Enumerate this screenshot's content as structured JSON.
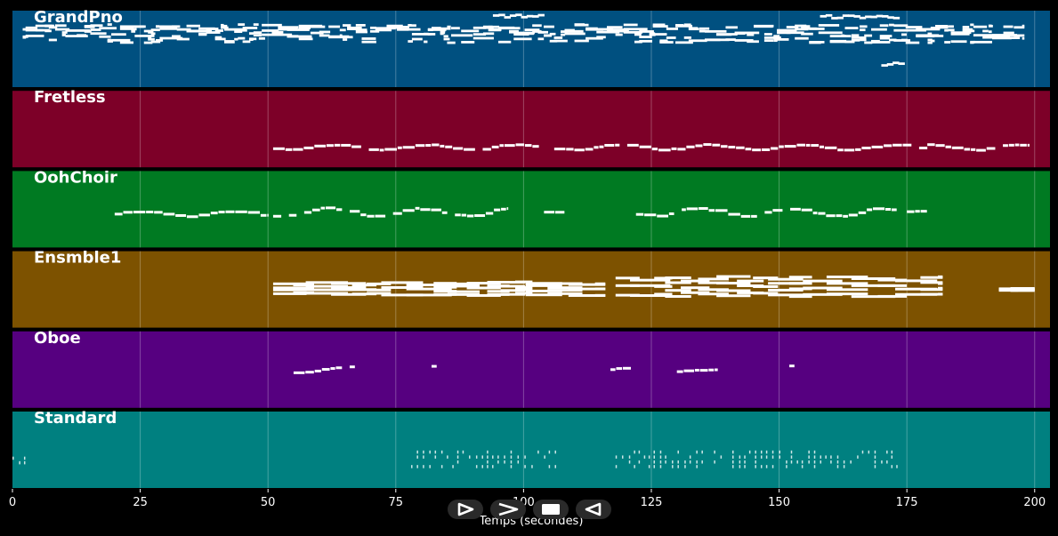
{
  "chart_data": {
    "type": "piano-roll",
    "xlabel": "Temps (secondes)",
    "xlim": [
      0,
      203
    ],
    "xticks": [
      0,
      25,
      50,
      75,
      100,
      125,
      150,
      175,
      200
    ],
    "grid": true,
    "tracks": [
      {
        "name": "GrandPno",
        "color": "#005080",
        "style": "dense",
        "segments": [
          {
            "start": 2,
            "end": 198,
            "pitch_min": 0.58,
            "pitch_max": 0.82
          }
        ],
        "extras": [
          {
            "start": 94,
            "end": 103,
            "pitch": 0.93
          },
          {
            "start": 158,
            "end": 173,
            "pitch": 0.92
          },
          {
            "start": 170,
            "end": 174,
            "pitch": 0.3
          }
        ]
      },
      {
        "name": "Fretless",
        "color": "#7d0028",
        "style": "melody",
        "segments": [
          {
            "start": 51,
            "end": 103,
            "pitch_min": 0.22,
            "pitch_max": 0.3
          },
          {
            "start": 106,
            "end": 179,
            "pitch_min": 0.22,
            "pitch_max": 0.3
          },
          {
            "start": 179,
            "end": 199,
            "pitch_min": 0.22,
            "pitch_max": 0.3
          }
        ]
      },
      {
        "name": "OohChoir",
        "color": "#007a22",
        "style": "melody",
        "segments": [
          {
            "start": 20,
            "end": 50,
            "pitch_min": 0.4,
            "pitch_max": 0.48
          },
          {
            "start": 51,
            "end": 97,
            "pitch_min": 0.4,
            "pitch_max": 0.52
          },
          {
            "start": 104,
            "end": 108,
            "pitch_min": 0.46,
            "pitch_max": 0.48
          },
          {
            "start": 122,
            "end": 173,
            "pitch_min": 0.4,
            "pitch_max": 0.52
          },
          {
            "start": 175,
            "end": 179,
            "pitch_min": 0.46,
            "pitch_max": 0.48
          }
        ]
      },
      {
        "name": "Ensmble1",
        "color": "#7d5200",
        "style": "chords",
        "segments": [
          {
            "start": 51,
            "end": 116,
            "pitch_min": 0.42,
            "pitch_max": 0.62
          },
          {
            "start": 118,
            "end": 182,
            "pitch_min": 0.4,
            "pitch_max": 0.7
          },
          {
            "start": 193,
            "end": 200,
            "pitch_min": 0.48,
            "pitch_max": 0.52
          }
        ]
      },
      {
        "name": "Oboe",
        "color": "#560080",
        "style": "melody",
        "segments": [
          {
            "start": 55,
            "end": 67,
            "pitch_min": 0.45,
            "pitch_max": 0.54
          },
          {
            "start": 82,
            "end": 83,
            "pitch_min": 0.54,
            "pitch_max": 0.56
          },
          {
            "start": 117,
            "end": 121,
            "pitch_min": 0.46,
            "pitch_max": 0.54
          },
          {
            "start": 130,
            "end": 138,
            "pitch_min": 0.46,
            "pitch_max": 0.5
          },
          {
            "start": 152,
            "end": 153,
            "pitch_min": 0.54,
            "pitch_max": 0.56
          }
        ]
      },
      {
        "name": "Standard",
        "color": "#008080",
        "style": "drums",
        "segments": [
          {
            "start": 0,
            "end": 3,
            "pitch_min": 0.33,
            "pitch_max": 0.35
          },
          {
            "start": 78,
            "end": 107,
            "pitch_min": 0.28,
            "pitch_max": 0.47
          },
          {
            "start": 118,
            "end": 174,
            "pitch_min": 0.28,
            "pitch_max": 0.47
          }
        ]
      }
    ]
  },
  "controls": [
    {
      "name": "play-button",
      "icon": "play-outline-icon"
    },
    {
      "name": "fast-forward-button",
      "icon": "chevron-right-icon"
    },
    {
      "name": "stop-button",
      "icon": "stop-icon"
    },
    {
      "name": "rewind-button",
      "icon": "play-reverse-outline-icon"
    }
  ]
}
